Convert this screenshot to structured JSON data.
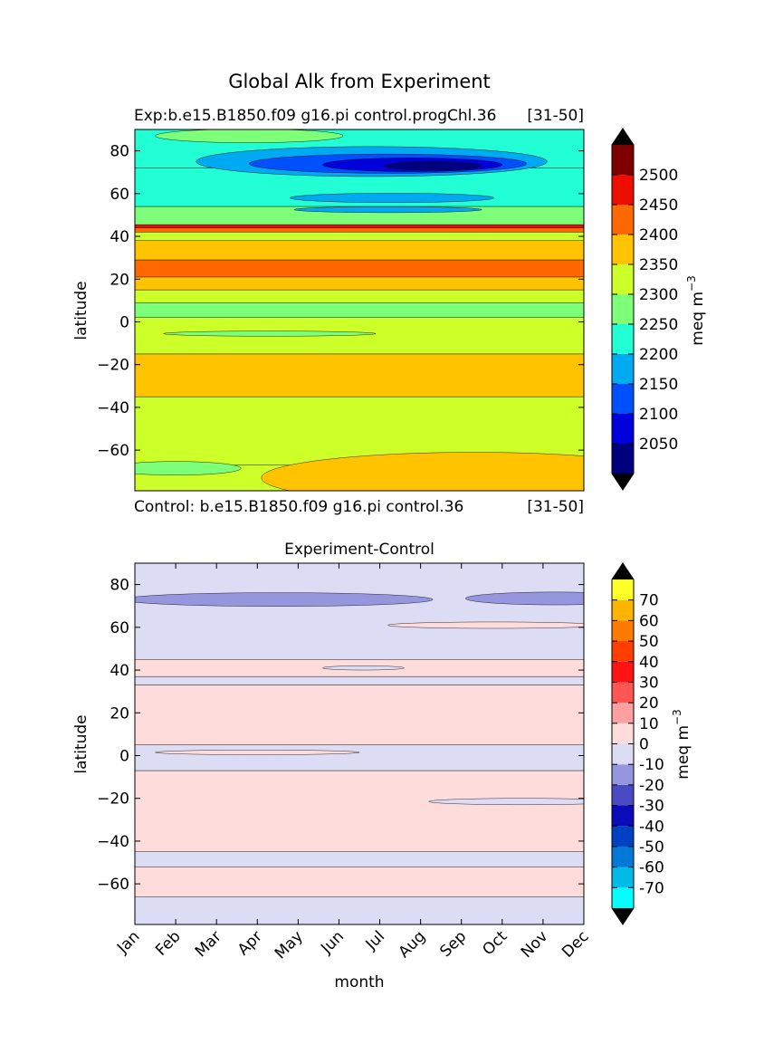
{
  "figure": {
    "title": "Global Alk from Experiment",
    "exp_label": "Exp:b.e15.B1850.f09 g16.pi control.progChl.36",
    "exp_years": "[31-50]",
    "ctrl_label": "Control: b.e15.B1850.f09 g16.pi control.36",
    "ctrl_years": "[31-50]",
    "diff_title": "Experiment-Control"
  },
  "chart_data": [
    {
      "type": "contourf",
      "title": "Exp:b.e15.B1850.f09 g16.pi control.progChl.36 [31-50]",
      "ylabel": "latitude",
      "ylim": [
        -79,
        90
      ],
      "xlim": [
        0,
        11
      ],
      "yticks": [
        80,
        60,
        40,
        20,
        0,
        -20,
        -40,
        -60
      ],
      "colorbar": {
        "label": "meq m",
        "label_sup": "−3",
        "levels": [
          2000,
          2050,
          2100,
          2150,
          2200,
          2250,
          2300,
          2350,
          2400,
          2450,
          2500,
          2550
        ],
        "tick_labels": [
          "2050",
          "2100",
          "2150",
          "2200",
          "2250",
          "2300",
          "2350",
          "2400",
          "2450",
          "2500"
        ],
        "colors": [
          "#00007f",
          "#0000dd",
          "#0050ff",
          "#00aaf2",
          "#23ffd4",
          "#7dff7a",
          "#cdff29",
          "#ffc300",
          "#ff6800",
          "#ee0e00",
          "#7f0000"
        ],
        "extend": "both"
      },
      "bands": [
        {
          "lat_from": -79,
          "lat_to": -67,
          "value": 2325
        },
        {
          "lat_from": -67,
          "lat_to": -35,
          "value": 2325
        },
        {
          "lat_from": -35,
          "lat_to": -15,
          "value": 2375
        },
        {
          "lat_from": -15,
          "lat_to": 2,
          "value": 2325
        },
        {
          "lat_from": 2,
          "lat_to": 9,
          "value": 2275
        },
        {
          "lat_from": 9,
          "lat_to": 15,
          "value": 2325
        },
        {
          "lat_from": 15,
          "lat_to": 21,
          "value": 2375
        },
        {
          "lat_from": 21,
          "lat_to": 29,
          "value": 2425
        },
        {
          "lat_from": 29,
          "lat_to": 38,
          "value": 2375
        },
        {
          "lat_from": 38,
          "lat_to": 42,
          "value": 2325
        },
        {
          "lat_from": 42,
          "lat_to": 44,
          "value": 2425
        },
        {
          "lat_from": 44,
          "lat_to": 45.5,
          "value": 2475
        },
        {
          "lat_from": 45.5,
          "lat_to": 54,
          "value": 2275
        },
        {
          "lat_from": 54,
          "lat_to": 72,
          "value": 2225
        },
        {
          "lat_from": 72,
          "lat_to": 90,
          "value": 2225
        }
      ],
      "patches": [
        {
          "kind": "ellipse",
          "month": 5.8,
          "lat": 75,
          "dmonth": 4.3,
          "dlat": 7,
          "value": 2175
        },
        {
          "kind": "ellipse",
          "month": 6.2,
          "lat": 74,
          "dmonth": 3.4,
          "dlat": 4.5,
          "value": 2125
        },
        {
          "kind": "ellipse",
          "month": 6.8,
          "lat": 73.5,
          "dmonth": 2.2,
          "dlat": 3.2,
          "value": 2075
        },
        {
          "kind": "ellipse",
          "month": 7.3,
          "lat": 73,
          "dmonth": 1.2,
          "dlat": 2,
          "value": 2025
        },
        {
          "kind": "ellipse",
          "month": 6.3,
          "lat": 58,
          "dmonth": 2.5,
          "dlat": 2.2,
          "value": 2175
        },
        {
          "kind": "ellipse",
          "month": 6.2,
          "lat": 52.5,
          "dmonth": 2.3,
          "dlat": 1.4,
          "value": 2175
        },
        {
          "kind": "ellipse",
          "month": 2.8,
          "lat": 87,
          "dmonth": 2.3,
          "dlat": 3.2,
          "value": 2275
        },
        {
          "kind": "ellipse",
          "month": 3.3,
          "lat": -5.5,
          "dmonth": 2.6,
          "dlat": 1.2,
          "value": 2275
        },
        {
          "kind": "ellipse",
          "month": 1.0,
          "lat": -68.5,
          "dmonth": 1.6,
          "dlat": 3.2,
          "value": 2275
        },
        {
          "kind": "ellipse",
          "month": 8.3,
          "lat": -73,
          "dmonth": 5.2,
          "dlat": 12,
          "value": 2375
        }
      ]
    },
    {
      "type": "contourf",
      "title": "Experiment-Control",
      "xlabel": "month",
      "ylabel": "latitude",
      "ylim": [
        -79,
        90
      ],
      "xlim": [
        0,
        11
      ],
      "yticks": [
        80,
        60,
        40,
        20,
        0,
        -20,
        -40,
        -60
      ],
      "xticks": [
        "Jan",
        "Feb",
        "Mar",
        "Apr",
        "May",
        "Jun",
        "Jul",
        "Aug",
        "Sep",
        "Oct",
        "Nov",
        "Dec"
      ],
      "colorbar": {
        "label": "meq m",
        "label_sup": "−3",
        "levels": [
          -80,
          -70,
          -60,
          -50,
          -40,
          -30,
          -20,
          -10,
          0,
          10,
          20,
          30,
          40,
          50,
          60,
          70,
          80
        ],
        "tick_labels": [
          "-70",
          "-60",
          "-50",
          "-40",
          "-30",
          "-20",
          "-10",
          "0",
          "10",
          "20",
          "30",
          "40",
          "50",
          "60",
          "70"
        ],
        "colors": [
          "#00ffff",
          "#00bae8",
          "#0078d7",
          "#0041c3",
          "#0b0bb9",
          "#4a4ac4",
          "#9696de",
          "#dcdcf5",
          "#ffdcdc",
          "#ffa0a0",
          "#ff5555",
          "#ff1313",
          "#ff3e00",
          "#ff7a00",
          "#ffb400",
          "#ffff2a"
        ],
        "extend": "both"
      },
      "bands": [
        {
          "lat_from": -79,
          "lat_to": -66,
          "value": -5
        },
        {
          "lat_from": -66,
          "lat_to": -52,
          "value": 5
        },
        {
          "lat_from": -52,
          "lat_to": -45,
          "value": -5
        },
        {
          "lat_from": -45,
          "lat_to": -7,
          "value": 5
        },
        {
          "lat_from": -7,
          "lat_to": 5,
          "value": -5
        },
        {
          "lat_from": 5,
          "lat_to": 33,
          "value": 5
        },
        {
          "lat_from": 33,
          "lat_to": 37,
          "value": -5
        },
        {
          "lat_from": 37,
          "lat_to": 45,
          "value": 5
        },
        {
          "lat_from": 45,
          "lat_to": 90,
          "value": -5
        }
      ],
      "patches": [
        {
          "kind": "ellipse",
          "month": 3.5,
          "lat": 73,
          "dmonth": 3.8,
          "dlat": 3.2,
          "value": -15
        },
        {
          "kind": "ellipse",
          "month": 10.3,
          "lat": 73.5,
          "dmonth": 2.2,
          "dlat": 3,
          "value": -15
        },
        {
          "kind": "ellipse",
          "month": 8.8,
          "lat": 61,
          "dmonth": 2.6,
          "dlat": 1.5,
          "value": 5
        },
        {
          "kind": "ellipse",
          "month": 5.6,
          "lat": 41,
          "dmonth": 1.0,
          "dlat": 1,
          "value": -5
        },
        {
          "kind": "ellipse",
          "month": 3.0,
          "lat": 1.5,
          "dmonth": 2.5,
          "dlat": 1.1,
          "value": 5
        },
        {
          "kind": "ellipse",
          "month": 9.5,
          "lat": -21.5,
          "dmonth": 2.3,
          "dlat": 1.5,
          "value": -5
        }
      ]
    }
  ]
}
